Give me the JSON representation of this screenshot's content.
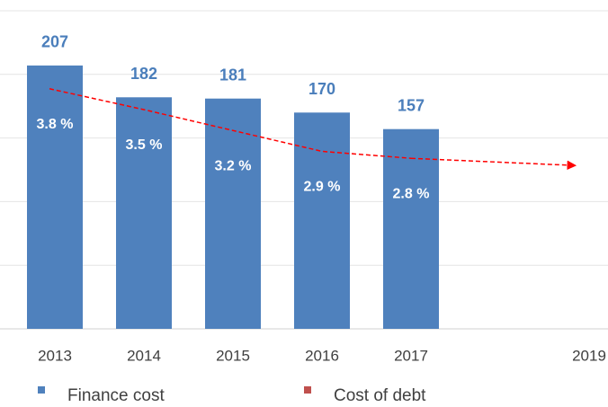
{
  "chart_data": {
    "type": "bar",
    "categories": [
      "2013",
      "2014",
      "2015",
      "2016",
      "2017",
      null,
      "2019"
    ],
    "series": [
      {
        "name": "Finance cost",
        "color": "#4f81bd",
        "values": [
          207,
          182,
          181,
          170,
          157,
          null,
          null
        ]
      },
      {
        "name": "Cost of debt",
        "color": "#c0504d",
        "type": "line",
        "axis": "y2",
        "line_color": "#ff0000",
        "values": [
          3.8,
          3.5,
          3.2,
          2.9,
          2.8,
          null,
          null
        ],
        "value_labels": [
          "3.8 %",
          "3.5 %",
          "3.2 %",
          "2.9 %",
          "2.8 %",
          null,
          null
        ]
      }
    ],
    "ylim": [
      0,
      250
    ],
    "yticks": [
      0,
      50,
      100,
      150,
      200,
      250
    ],
    "y2lim": [
      0.35,
      4.92
    ],
    "grid": true,
    "legend": "bottom"
  }
}
